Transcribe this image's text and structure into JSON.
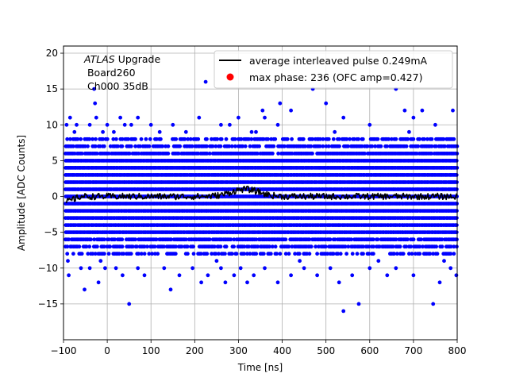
{
  "chart_data": {
    "type": "scatter",
    "xlabel": "Time [ns]",
    "ylabel": "Amplitude [ADC Counts]",
    "xlim": [
      -100,
      800
    ],
    "ylim": [
      -20,
      21
    ],
    "xticks": [
      -100,
      0,
      100,
      200,
      300,
      400,
      500,
      600,
      700,
      800
    ],
    "yticks": [
      -15,
      -10,
      -5,
      0,
      5,
      10,
      15,
      20
    ],
    "grid": true,
    "legend_position": "top-right",
    "annotation": {
      "italic": "ATLAS",
      "rest": " Upgrade",
      "line2": " Board260",
      "line3": " Ch000 35dB"
    },
    "series": [
      {
        "name": "average interleaved pulse 0.249mA",
        "kind": "line",
        "color": "#000000",
        "x_range": [
          -95,
          800
        ],
        "baseline": 0,
        "bump": {
          "center": 315,
          "amplitude": 1.0
        },
        "start_offset": -0.8
      },
      {
        "name": "max phase: 236 (OFC amp=0.427)",
        "kind": "marker",
        "color": "#ff0000",
        "points": []
      },
      {
        "kind": "samples",
        "color": "#0000ff",
        "x_range": [
          -95,
          800
        ],
        "dense_levels": [
          -8,
          -7,
          -6,
          -5,
          -4,
          -3,
          -2,
          -1,
          0,
          1,
          2,
          3,
          4,
          5,
          6,
          7,
          8
        ],
        "outlier_points": [
          [
            -93,
            10
          ],
          [
            -85,
            11
          ],
          [
            -70,
            10
          ],
          [
            -40,
            10
          ],
          [
            -30,
            15
          ],
          [
            -28,
            13
          ],
          [
            -25,
            11
          ],
          [
            -10,
            9
          ],
          [
            0,
            10
          ],
          [
            15,
            9
          ],
          [
            30,
            11
          ],
          [
            40,
            10
          ],
          [
            55,
            10
          ],
          [
            70,
            11
          ],
          [
            100,
            10
          ],
          [
            150,
            10
          ],
          [
            180,
            9
          ],
          [
            210,
            11
          ],
          [
            225,
            16
          ],
          [
            260,
            10
          ],
          [
            280,
            10
          ],
          [
            300,
            11
          ],
          [
            330,
            9
          ],
          [
            355,
            12
          ],
          [
            360,
            11
          ],
          [
            390,
            10
          ],
          [
            395,
            13
          ],
          [
            420,
            12
          ],
          [
            470,
            15
          ],
          [
            500,
            13
          ],
          [
            540,
            11
          ],
          [
            600,
            10
          ],
          [
            660,
            15
          ],
          [
            680,
            12
          ],
          [
            700,
            11
          ],
          [
            720,
            12
          ],
          [
            750,
            10
          ],
          [
            790,
            12
          ],
          [
            -90,
            -9
          ],
          [
            -88,
            -11
          ],
          [
            -60,
            -10
          ],
          [
            -52,
            -13
          ],
          [
            -40,
            -10
          ],
          [
            -20,
            -12
          ],
          [
            -5,
            -10
          ],
          [
            20,
            -10
          ],
          [
            35,
            -11
          ],
          [
            50,
            -15
          ],
          [
            70,
            -10
          ],
          [
            85,
            -11
          ],
          [
            130,
            -10
          ],
          [
            145,
            -13
          ],
          [
            165,
            -11
          ],
          [
            195,
            -10
          ],
          [
            215,
            -12
          ],
          [
            230,
            -11
          ],
          [
            260,
            -10
          ],
          [
            270,
            -12
          ],
          [
            290,
            -11
          ],
          [
            305,
            -10
          ],
          [
            320,
            -12
          ],
          [
            335,
            -11
          ],
          [
            360,
            -10
          ],
          [
            390,
            -12
          ],
          [
            420,
            -11
          ],
          [
            450,
            -10
          ],
          [
            480,
            -11
          ],
          [
            510,
            -10
          ],
          [
            530,
            -12
          ],
          [
            540,
            -16
          ],
          [
            560,
            -11
          ],
          [
            575,
            -15
          ],
          [
            600,
            -10
          ],
          [
            640,
            -11
          ],
          [
            660,
            -10
          ],
          [
            700,
            -11
          ],
          [
            745,
            -15
          ],
          [
            760,
            -12
          ],
          [
            785,
            -10
          ],
          [
            798,
            -11
          ],
          [
            -75,
            9
          ],
          [
            -15,
            -9
          ],
          [
            120,
            9
          ],
          [
            250,
            -9
          ],
          [
            340,
            9
          ],
          [
            440,
            -9
          ],
          [
            520,
            9
          ],
          [
            620,
            -9
          ],
          [
            690,
            9
          ],
          [
            770,
            -9
          ]
        ]
      }
    ]
  }
}
